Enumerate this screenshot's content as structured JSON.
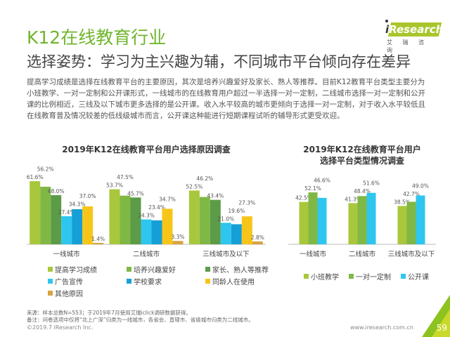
{
  "header": {
    "title": "K12在线教育行业",
    "subtitle": "选择姿势：学习为主兴趣为辅，不同城市平台倾向存在差异",
    "body": "提高学习成绩是选择在线教育平台的主要原因，其次是培养兴趣爱好及家长、熟人等推荐。目前K12教育平台类型主要分为小班教学、一对一定制和公开课形式，一线城市的在线教育用户超过一半选择一对一定制，二线城市选择一对一定制和公开课的比例相近，三线及以下城市更多选择的是公开课。收入水平较高的城市更倾向于选择一对一定制，对于收入水平较低且在线教育普及情况较差的低线级城市而言，公开课这种能进行短期课程试听的辅导形式更受欢迎。"
  },
  "logo": {
    "text": "iResearch",
    "sub": "艾 瑞 咨 询",
    "color": "#a8c62c"
  },
  "chart_data": [
    {
      "type": "bar",
      "title": "2019年K12在线教育平台用户选择原因调查",
      "categories": [
        "一线城市",
        "二线城市",
        "三线城市及以下"
      ],
      "series": [
        {
          "name": "提高学习成绩",
          "values": [
            61.6,
            53.7,
            52.5
          ],
          "color": "#a9c73c"
        },
        {
          "name": "培养兴趣爱好",
          "values": [
            56.2,
            47.5,
            46.2
          ],
          "color": "#80b845"
        },
        {
          "name": "家长、熟人等推荐",
          "values": [
            48.0,
            45.7,
            43.4
          ],
          "color": "#5c9c48"
        },
        {
          "name": "广告宣传",
          "values": [
            27.4,
            24.3,
            21.0
          ],
          "color": "#2ec6ef"
        },
        {
          "name": "学校要求",
          "values": [
            34.3,
            23.4,
            19.6
          ],
          "color": "#169fd6"
        },
        {
          "name": "同龄人在使用",
          "values": [
            37.0,
            34.7,
            27.3
          ],
          "color": "#f7c51a"
        },
        {
          "name": "其他原因",
          "values": [
            1.4,
            3.3,
            2.8
          ],
          "color": "#d8a440"
        }
      ],
      "unit": "%"
    },
    {
      "type": "bar",
      "title": "2019年K12在线教育平台用户选择平台类型情况调查",
      "title_lines": [
        "2019年K12在线教育平台用户",
        "选择平台类型情况调查"
      ],
      "categories": [
        "一线城市",
        "二线城市",
        "三线城市及以下"
      ],
      "series": [
        {
          "name": "小班教学",
          "values": [
            42.5,
            41.3,
            38.5
          ],
          "color": "#a9c73c"
        },
        {
          "name": "一对一定制",
          "values": [
            52.1,
            48.4,
            42.7
          ],
          "color": "#80b845"
        },
        {
          "name": "公开课",
          "values": [
            46.6,
            51.6,
            49.0
          ],
          "color": "#2ec6ef"
        }
      ],
      "unit": "%"
    }
  ],
  "footer": {
    "source": "来源：样本总数N=553；于2019年7月使用艾瑞iclick调研数据获得。",
    "note": "备注：问卷选项中仅将“北上广深”归类为一线城市，各省会、直辖市、省级城市归类为二线城市。",
    "copyright": "©2019.7 iResearch Inc.",
    "url": "www.iresearch.com.cn",
    "page": "59"
  }
}
